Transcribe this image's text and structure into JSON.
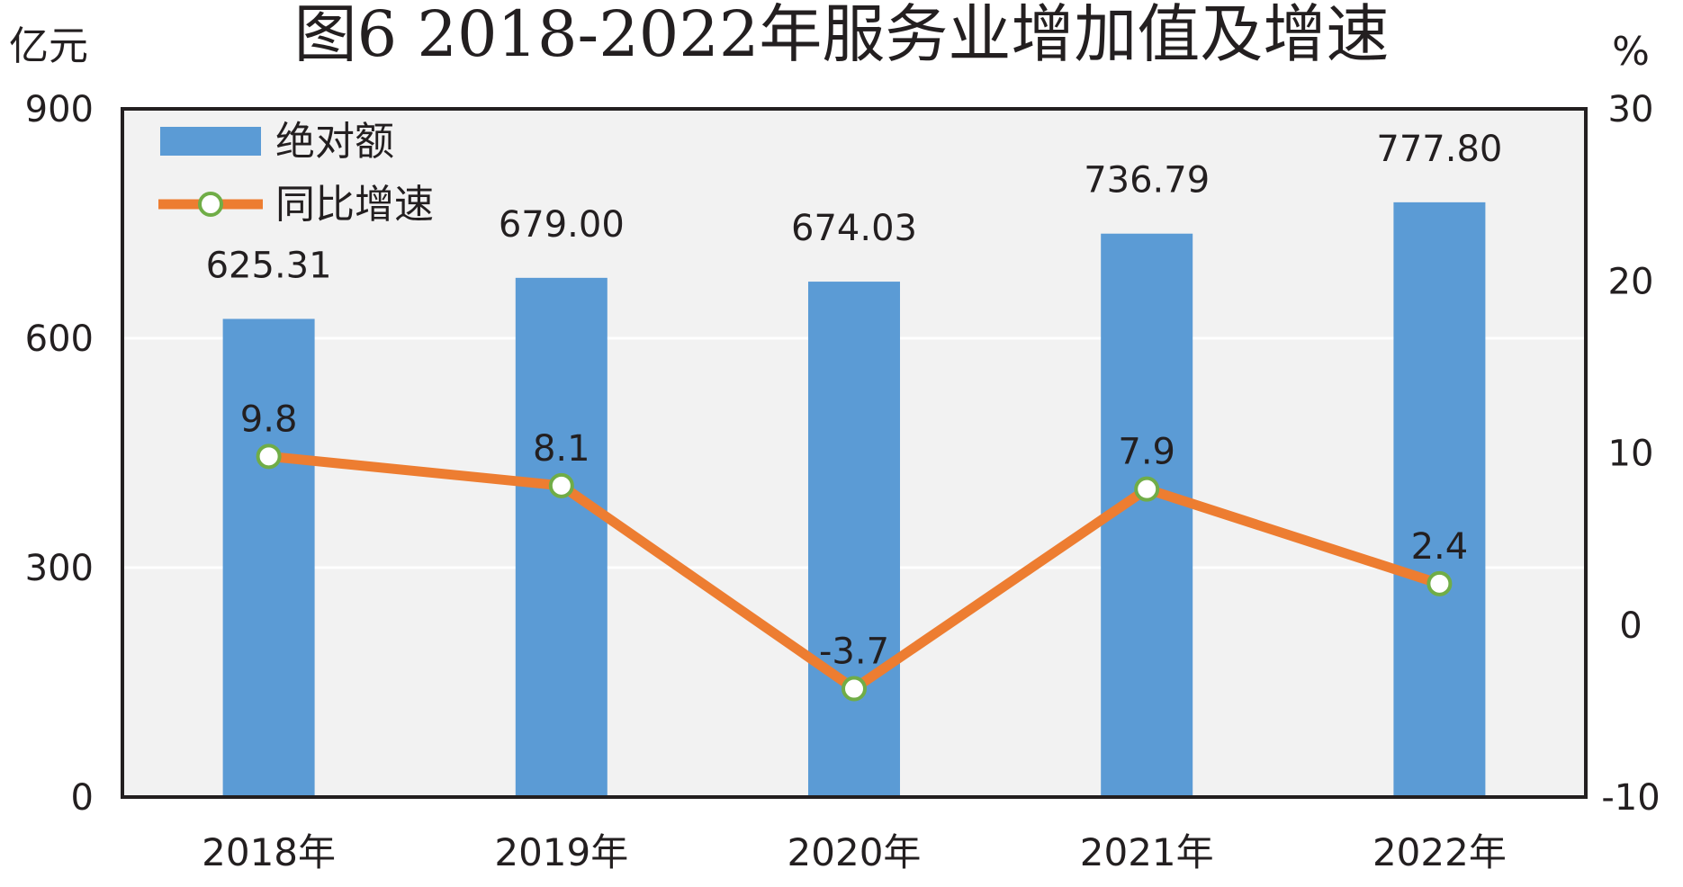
{
  "chart_data": {
    "type": "bar",
    "title": "图6 2018-2022年服务业增加值及增速",
    "y_left_unit": "亿元",
    "y_right_unit": "%",
    "categories": [
      "2018年",
      "2019年",
      "2020年",
      "2021年",
      "2022年"
    ],
    "series": [
      {
        "name": "绝对额",
        "type": "bar",
        "axis": "left",
        "values": [
          625.31,
          679.0,
          674.03,
          736.79,
          777.8
        ],
        "labels": [
          "625.31",
          "679.00",
          "674.03",
          "736.79",
          "777.80"
        ]
      },
      {
        "name": "同比增速",
        "type": "line",
        "axis": "right",
        "values": [
          9.8,
          8.1,
          -3.7,
          7.9,
          2.4
        ],
        "labels": [
          "9.8",
          "8.1",
          "-3.7",
          "7.9",
          "2.4"
        ]
      }
    ],
    "y_left_ticks": [
      "0",
      "300",
      "600",
      "900"
    ],
    "y_left_lim": [
      0,
      900
    ],
    "y_right_ticks": [
      "-10",
      "0",
      "10",
      "20",
      "30"
    ],
    "y_right_lim": [
      -10,
      30
    ],
    "grid": true,
    "legend_position": "top-left",
    "colors": {
      "bar": "#5b9bd5",
      "line": "#ed7d31",
      "marker_edge": "#70ad47",
      "marker_fill": "#ffffff",
      "plot_bg": "#f2f2f2",
      "grid": "#ffffff",
      "frame": "#231f20"
    }
  }
}
